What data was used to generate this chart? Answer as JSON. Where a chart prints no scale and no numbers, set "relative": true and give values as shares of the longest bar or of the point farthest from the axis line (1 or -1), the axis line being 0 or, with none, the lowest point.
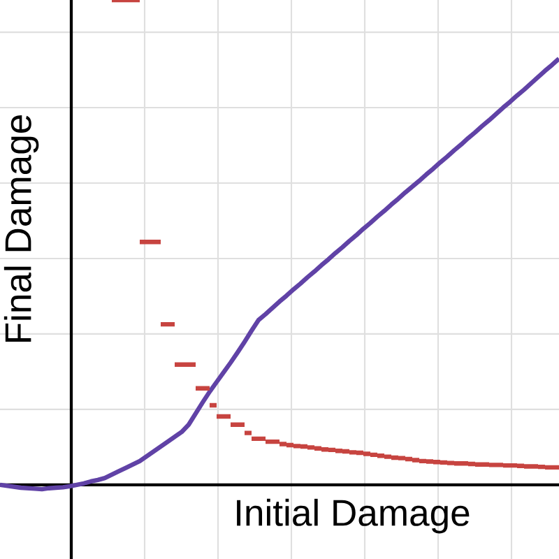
{
  "chart_data": {
    "type": "line",
    "relative": true,
    "xlabel": "Initial Damage",
    "ylabel": "Final Damage",
    "grid": true,
    "categories": [
      null,
      null,
      null,
      null,
      null,
      null,
      null,
      null,
      null,
      null,
      null,
      null,
      null,
      null,
      null,
      null,
      null,
      null,
      null,
      null,
      null,
      null,
      null,
      null,
      null,
      null,
      null,
      null,
      null,
      null,
      null,
      null,
      null,
      null,
      null,
      null,
      null,
      null,
      null,
      null,
      null,
      null,
      null,
      null,
      null,
      null,
      null,
      null,
      null,
      null,
      null,
      null,
      null,
      null,
      null,
      null,
      null,
      null,
      null,
      null,
      null,
      null,
      null,
      null,
      null,
      null,
      null,
      null,
      null,
      null,
      null,
      null,
      null,
      null,
      null,
      null,
      null,
      null,
      null,
      null,
      null
    ],
    "series": [
      {
        "color": "#6042a6",
        "values": [
          0,
          -0.002,
          -0.004,
          -0.006,
          -0.007,
          -0.008,
          -0.009,
          -0.007,
          -0.006,
          -0.005,
          -0.003,
          0,
          0.003,
          0.007,
          0.01,
          0.014,
          0.021,
          0.028,
          0.035,
          0.042,
          0.049,
          0.059,
          0.069,
          0.079,
          0.089,
          0.099,
          0.109,
          0.124,
          0.147,
          0.17,
          0.192,
          0.212,
          0.232,
          0.252,
          0.273,
          0.295,
          0.318,
          0.34,
          0.352,
          0.365,
          0.378,
          0.39,
          0.403,
          0.415,
          0.428,
          0.44,
          0.453,
          0.465,
          0.478,
          0.49,
          0.503,
          0.515,
          0.528,
          0.54,
          0.553,
          0.565,
          0.578,
          0.59,
          0.603,
          0.615,
          0.627,
          0.64,
          0.652,
          0.665,
          0.677,
          0.69,
          0.702,
          0.715,
          0.727,
          0.74,
          0.752,
          0.765,
          0.778,
          0.79,
          0.803,
          0.815,
          0.828,
          0.841,
          0.854,
          0.866,
          0.879
        ]
      },
      {
        "color": "#c74440",
        "type": "step",
        "values": [
          null,
          null,
          null,
          null,
          null,
          null,
          null,
          null,
          null,
          null,
          null,
          null,
          null,
          null,
          null,
          null,
          1.0,
          1.0,
          1.0,
          1.0,
          0.501,
          0.501,
          0.501,
          0.331,
          0.331,
          0.248,
          0.248,
          0.248,
          0.199,
          0.199,
          0.164,
          0.141,
          0.141,
          0.124,
          0.124,
          0.107,
          0.095,
          0.095,
          0.089,
          0.089,
          0.084,
          0.082,
          0.08,
          0.079,
          0.077,
          0.075,
          0.073,
          0.072,
          0.07,
          0.069,
          0.067,
          0.066,
          0.064,
          0.062,
          0.06,
          0.058,
          0.056,
          0.055,
          0.053,
          0.051,
          0.049,
          0.048,
          0.047,
          0.046,
          0.045,
          0.044,
          0.044,
          0.043,
          0.042,
          0.042,
          0.041,
          0.041,
          0.04,
          0.04,
          0.039,
          0.038,
          0.038,
          0.037,
          0.036,
          0.036,
          0.035
        ]
      }
    ]
  }
}
